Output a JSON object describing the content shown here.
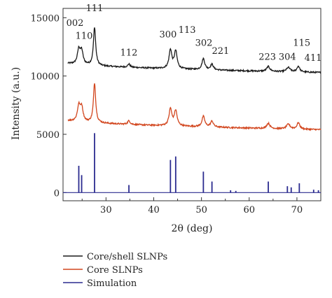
{
  "chart_data": {
    "type": "line",
    "xlabel": "2θ (deg)",
    "ylabel": "Intensity (a.u.)",
    "xlim": [
      21,
      75
    ],
    "ylim": [
      -700,
      15800
    ],
    "x_ticks": [
      30,
      40,
      50,
      60,
      70
    ],
    "y_ticks": [
      0,
      5000,
      10000,
      15000
    ],
    "grid": false,
    "legend_placement": "below",
    "series": [
      {
        "name": "Core/shell SLNPs",
        "color": "#1a1a1a",
        "baseline": 11200,
        "tail": 10300,
        "noise": 60,
        "peaks": [
          {
            "x": 24.3,
            "h": 1250,
            "w": 0.35
          },
          {
            "x": 24.9,
            "h": 1100,
            "w": 0.35
          },
          {
            "x": 27.6,
            "h": 3300,
            "w": 0.28
          },
          {
            "x": 34.8,
            "h": 280,
            "w": 0.3
          },
          {
            "x": 43.5,
            "h": 1600,
            "w": 0.35
          },
          {
            "x": 44.6,
            "h": 1500,
            "w": 0.35
          },
          {
            "x": 50.4,
            "h": 950,
            "w": 0.35
          },
          {
            "x": 52.2,
            "h": 480,
            "w": 0.35
          },
          {
            "x": 64.0,
            "h": 420,
            "w": 0.4
          },
          {
            "x": 68.2,
            "h": 370,
            "w": 0.45
          },
          {
            "x": 70.3,
            "h": 500,
            "w": 0.35
          }
        ]
      },
      {
        "name": "Core SLNPs",
        "color": "#d2461e",
        "baseline": 6300,
        "tail": 5400,
        "noise": 60,
        "peaks": [
          {
            "x": 24.3,
            "h": 1300,
            "w": 0.35
          },
          {
            "x": 24.9,
            "h": 1200,
            "w": 0.35
          },
          {
            "x": 27.6,
            "h": 3400,
            "w": 0.28
          },
          {
            "x": 34.8,
            "h": 320,
            "w": 0.3
          },
          {
            "x": 43.5,
            "h": 1450,
            "w": 0.35
          },
          {
            "x": 44.6,
            "h": 1300,
            "w": 0.35
          },
          {
            "x": 50.4,
            "h": 900,
            "w": 0.35
          },
          {
            "x": 52.2,
            "h": 500,
            "w": 0.35
          },
          {
            "x": 64.0,
            "h": 450,
            "w": 0.4
          },
          {
            "x": 68.2,
            "h": 400,
            "w": 0.45
          },
          {
            "x": 70.3,
            "h": 550,
            "w": 0.35
          }
        ]
      },
      {
        "name": "Simulation",
        "color": "#2b2b8f",
        "baseline": 0,
        "sticks": [
          {
            "x": 24.3,
            "y": 2300
          },
          {
            "x": 24.9,
            "y": 1500
          },
          {
            "x": 27.6,
            "y": 5100
          },
          {
            "x": 34.8,
            "y": 650
          },
          {
            "x": 43.5,
            "y": 2800
          },
          {
            "x": 44.6,
            "y": 3100
          },
          {
            "x": 50.4,
            "y": 1800
          },
          {
            "x": 52.2,
            "y": 950
          },
          {
            "x": 56.1,
            "y": 200
          },
          {
            "x": 57.2,
            "y": 150
          },
          {
            "x": 64.0,
            "y": 950
          },
          {
            "x": 68.0,
            "y": 550
          },
          {
            "x": 68.8,
            "y": 450
          },
          {
            "x": 70.5,
            "y": 800
          },
          {
            "x": 73.5,
            "y": 250
          },
          {
            "x": 74.5,
            "y": 200
          }
        ]
      }
    ],
    "peak_labels": [
      {
        "text": "002",
        "x": 23.5,
        "y": 14300
      },
      {
        "text": "110",
        "x": 25.4,
        "y": 13200
      },
      {
        "text": "111",
        "x": 27.6,
        "y": 15550
      },
      {
        "text": "112",
        "x": 34.8,
        "y": 11750
      },
      {
        "text": "300",
        "x": 43.0,
        "y": 13300
      },
      {
        "text": "113",
        "x": 47.0,
        "y": 13700
      },
      {
        "text": "302",
        "x": 50.5,
        "y": 12600
      },
      {
        "text": "221",
        "x": 54.0,
        "y": 11900
      },
      {
        "text": "223",
        "x": 63.8,
        "y": 11400
      },
      {
        "text": "304",
        "x": 68.0,
        "y": 11400
      },
      {
        "text": "115",
        "x": 71.0,
        "y": 12600
      },
      {
        "text": "411",
        "x": 73.4,
        "y": 11300
      }
    ]
  }
}
